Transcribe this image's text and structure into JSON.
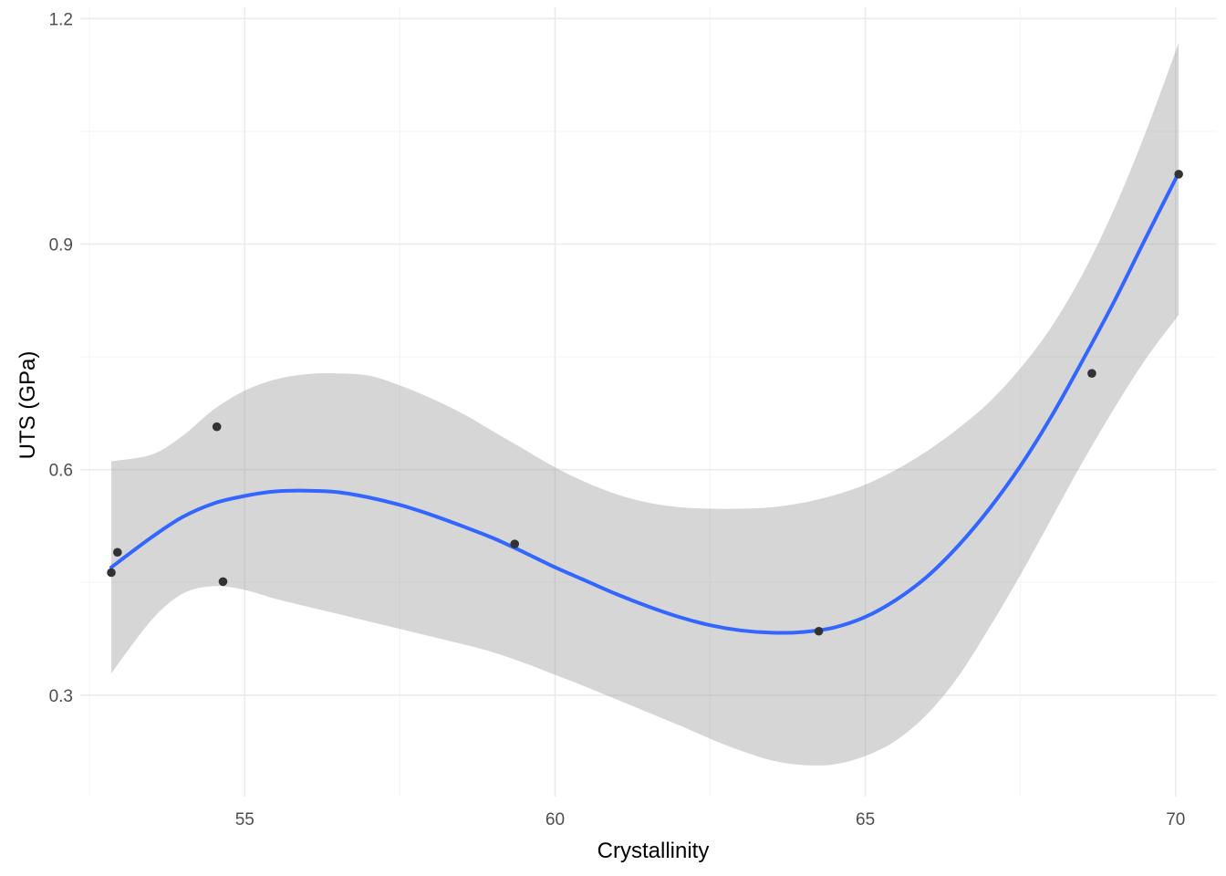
{
  "chart_data": {
    "type": "scatter",
    "title": "",
    "xlabel": "Crystallinity",
    "ylabel": "UTS (GPa)",
    "xlim": [
      52.35,
      70.65
    ],
    "ylim": [
      0.165,
      1.215
    ],
    "x_ticks": [
      55,
      60,
      65,
      70
    ],
    "x_tick_labels": [
      "55",
      "60",
      "65",
      "70"
    ],
    "y_ticks": [
      0.3,
      0.6,
      0.9,
      1.2
    ],
    "y_tick_labels": [
      "0.3",
      "0.6",
      "0.9",
      "1.2"
    ],
    "grid": true,
    "legend": "none",
    "points": {
      "x": [
        52.85,
        52.95,
        54.55,
        54.65,
        59.35,
        64.25,
        68.65,
        70.05
      ],
      "y": [
        0.463,
        0.49,
        0.657,
        0.451,
        0.501,
        0.385,
        0.728,
        0.993
      ]
    },
    "smooth": {
      "x": [
        52.85,
        53.5,
        54.0,
        54.5,
        55.0,
        55.5,
        56.0,
        56.5,
        57.0,
        57.5,
        58.0,
        58.5,
        59.0,
        59.5,
        60.0,
        60.5,
        61.0,
        61.5,
        62.0,
        62.5,
        63.0,
        63.5,
        64.0,
        64.5,
        65.0,
        65.5,
        66.0,
        66.5,
        67.0,
        67.5,
        68.0,
        68.5,
        69.0,
        69.5,
        70.05
      ],
      "y": [
        0.47,
        0.51,
        0.537,
        0.555,
        0.565,
        0.571,
        0.572,
        0.57,
        0.563,
        0.553,
        0.54,
        0.525,
        0.509,
        0.49,
        0.47,
        0.452,
        0.434,
        0.418,
        0.404,
        0.393,
        0.386,
        0.383,
        0.384,
        0.39,
        0.404,
        0.427,
        0.458,
        0.499,
        0.548,
        0.605,
        0.671,
        0.745,
        0.822,
        0.905,
        0.995
      ]
    },
    "band_upper": [
      0.611,
      0.62,
      0.645,
      0.68,
      0.705,
      0.72,
      0.727,
      0.728,
      0.725,
      0.712,
      0.695,
      0.675,
      0.651,
      0.627,
      0.603,
      0.583,
      0.567,
      0.556,
      0.55,
      0.548,
      0.548,
      0.55,
      0.556,
      0.566,
      0.58,
      0.6,
      0.625,
      0.655,
      0.69,
      0.735,
      0.79,
      0.86,
      0.945,
      1.045,
      1.168
    ],
    "band_lower": [
      0.329,
      0.4,
      0.435,
      0.445,
      0.44,
      0.428,
      0.418,
      0.408,
      0.398,
      0.388,
      0.378,
      0.368,
      0.357,
      0.343,
      0.327,
      0.311,
      0.294,
      0.277,
      0.26,
      0.242,
      0.226,
      0.213,
      0.207,
      0.208,
      0.219,
      0.24,
      0.275,
      0.325,
      0.39,
      0.46,
      0.535,
      0.61,
      0.68,
      0.745,
      0.806
    ],
    "colors": {
      "point": "#333333",
      "line": "#3366ff",
      "band": "#999999",
      "grid_major": "#ebebeb",
      "grid_minor": "#f5f5f5"
    }
  }
}
